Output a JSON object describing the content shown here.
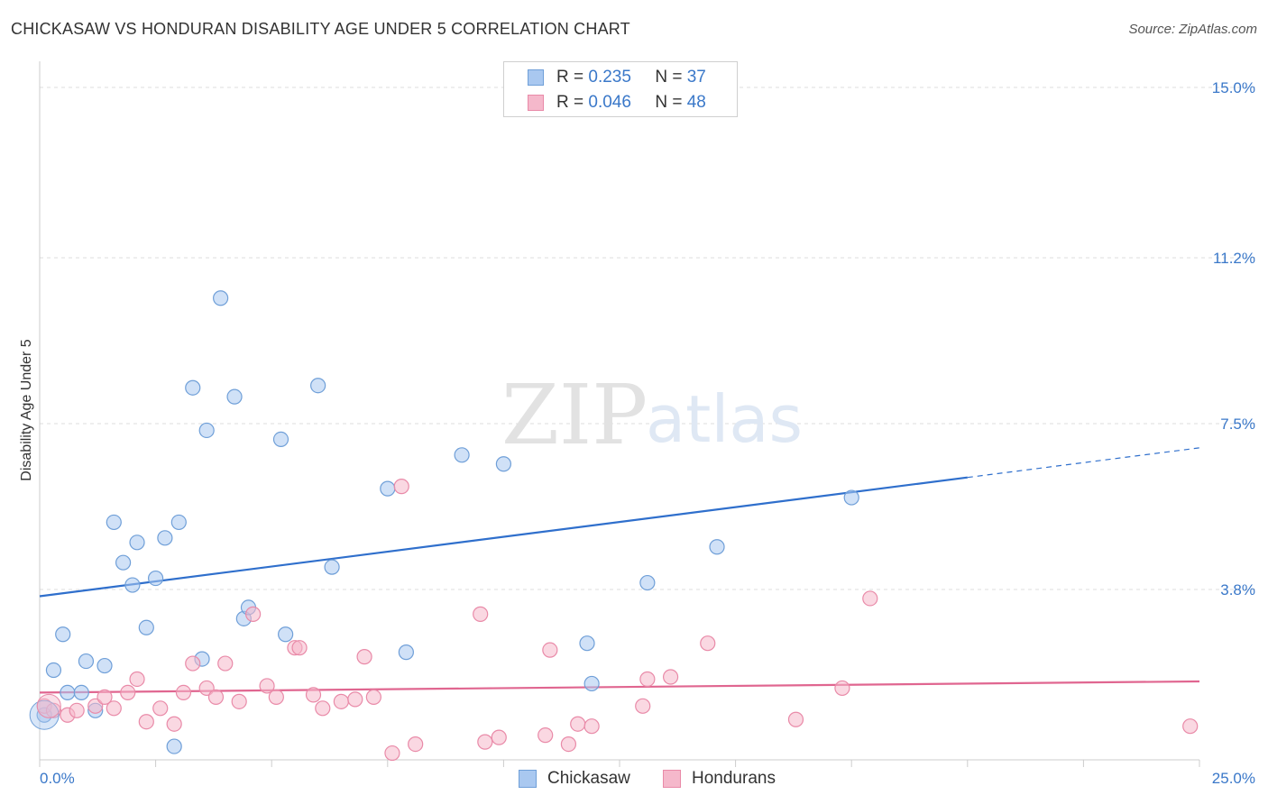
{
  "header": {
    "title": "CHICKASAW VS HONDURAN DISABILITY AGE UNDER 5 CORRELATION CHART",
    "source": "Source: ZipAtlas.com"
  },
  "watermark": {
    "zip": "ZIP",
    "atlas": "atlas"
  },
  "legend": {
    "rows": [
      {
        "r_label": "R =",
        "r_value": "0.235",
        "n_label": "N =",
        "n_value": "37",
        "color": "#a9c8f0"
      },
      {
        "r_label": "R =",
        "r_value": "0.046",
        "n_label": "N =",
        "n_value": "48",
        "color": "#f5b8cb"
      }
    ]
  },
  "bottom_legend": [
    "Chickasaw",
    "Hondurans"
  ],
  "chart_data": {
    "type": "scatter",
    "title": "CHICKASAW VS HONDURAN DISABILITY AGE UNDER 5 CORRELATION CHART",
    "ylabel": "Disability Age Under 5",
    "xlabel": "",
    "xlim": [
      0,
      25
    ],
    "ylim": [
      0,
      15
    ],
    "x_tick_labels": [
      "0.0%",
      "25.0%"
    ],
    "y_ticks": [
      3.8,
      7.5,
      11.2,
      15.0
    ],
    "y_tick_labels": [
      "3.8%",
      "7.5%",
      "11.2%",
      "15.0%"
    ],
    "grid": "horizontal dashed",
    "legend_position": "top-center",
    "series": [
      {
        "name": "Chickasaw",
        "color": "#a9c8f0",
        "edge": "#6f9fd8",
        "trend_color": "#2f6fcc",
        "trend": {
          "x0": 0,
          "y0": 3.65,
          "x1": 20,
          "y1": 6.3,
          "dashed_to_x": 25,
          "dashed_to_y": 6.96
        },
        "points": [
          [
            0.1,
            1.0
          ],
          [
            0.3,
            2.0
          ],
          [
            0.5,
            2.8
          ],
          [
            0.6,
            1.5
          ],
          [
            0.9,
            1.5
          ],
          [
            1.0,
            2.2
          ],
          [
            1.2,
            1.1
          ],
          [
            1.4,
            2.1
          ],
          [
            1.6,
            5.3
          ],
          [
            1.8,
            4.4
          ],
          [
            2.0,
            3.9
          ],
          [
            2.1,
            4.85
          ],
          [
            2.3,
            2.95
          ],
          [
            2.5,
            4.05
          ],
          [
            2.7,
            4.95
          ],
          [
            2.9,
            0.3
          ],
          [
            3.0,
            5.3
          ],
          [
            3.3,
            8.3
          ],
          [
            3.5,
            2.25
          ],
          [
            3.6,
            7.35
          ],
          [
            3.9,
            10.3
          ],
          [
            4.2,
            8.1
          ],
          [
            4.4,
            3.15
          ],
          [
            4.5,
            3.4
          ],
          [
            5.2,
            7.15
          ],
          [
            5.3,
            2.8
          ],
          [
            6.3,
            4.3
          ],
          [
            6.0,
            8.35
          ],
          [
            7.5,
            6.05
          ],
          [
            7.9,
            2.4
          ],
          [
            9.1,
            6.8
          ],
          [
            10.0,
            6.6
          ],
          [
            11.8,
            2.6
          ],
          [
            11.9,
            1.7
          ],
          [
            13.1,
            3.95
          ],
          [
            14.6,
            4.75
          ],
          [
            17.5,
            5.85
          ]
        ]
      },
      {
        "name": "Hondurans",
        "color": "#f5b8cb",
        "edge": "#e98aa8",
        "trend_color": "#e06690",
        "trend": {
          "x0": 0,
          "y0": 1.5,
          "x1": 25,
          "y1": 1.75
        },
        "points": [
          [
            0.1,
            1.2
          ],
          [
            0.3,
            1.1
          ],
          [
            0.6,
            1.0
          ],
          [
            0.8,
            1.1
          ],
          [
            1.2,
            1.2
          ],
          [
            1.4,
            1.4
          ],
          [
            1.6,
            1.15
          ],
          [
            1.9,
            1.5
          ],
          [
            2.1,
            1.8
          ],
          [
            2.3,
            0.85
          ],
          [
            2.6,
            1.15
          ],
          [
            2.9,
            0.8
          ],
          [
            3.1,
            1.5
          ],
          [
            3.3,
            2.15
          ],
          [
            3.6,
            1.6
          ],
          [
            3.8,
            1.4
          ],
          [
            4.0,
            2.15
          ],
          [
            4.3,
            1.3
          ],
          [
            4.6,
            3.25
          ],
          [
            4.9,
            1.65
          ],
          [
            5.1,
            1.4
          ],
          [
            5.5,
            2.5
          ],
          [
            5.6,
            2.5
          ],
          [
            5.9,
            1.45
          ],
          [
            6.1,
            1.15
          ],
          [
            6.5,
            1.3
          ],
          [
            6.8,
            1.35
          ],
          [
            7.0,
            2.3
          ],
          [
            7.2,
            1.4
          ],
          [
            7.6,
            0.15
          ],
          [
            7.8,
            6.1
          ],
          [
            8.1,
            0.35
          ],
          [
            9.5,
            3.25
          ],
          [
            9.6,
            0.4
          ],
          [
            9.9,
            0.5
          ],
          [
            10.9,
            0.55
          ],
          [
            11.0,
            2.45
          ],
          [
            11.4,
            0.35
          ],
          [
            11.6,
            0.8
          ],
          [
            11.9,
            0.75
          ],
          [
            13.0,
            1.2
          ],
          [
            13.1,
            1.8
          ],
          [
            13.6,
            1.85
          ],
          [
            14.4,
            2.6
          ],
          [
            16.3,
            0.9
          ],
          [
            17.3,
            1.6
          ],
          [
            17.9,
            3.6
          ],
          [
            24.8,
            0.75
          ]
        ]
      }
    ]
  }
}
